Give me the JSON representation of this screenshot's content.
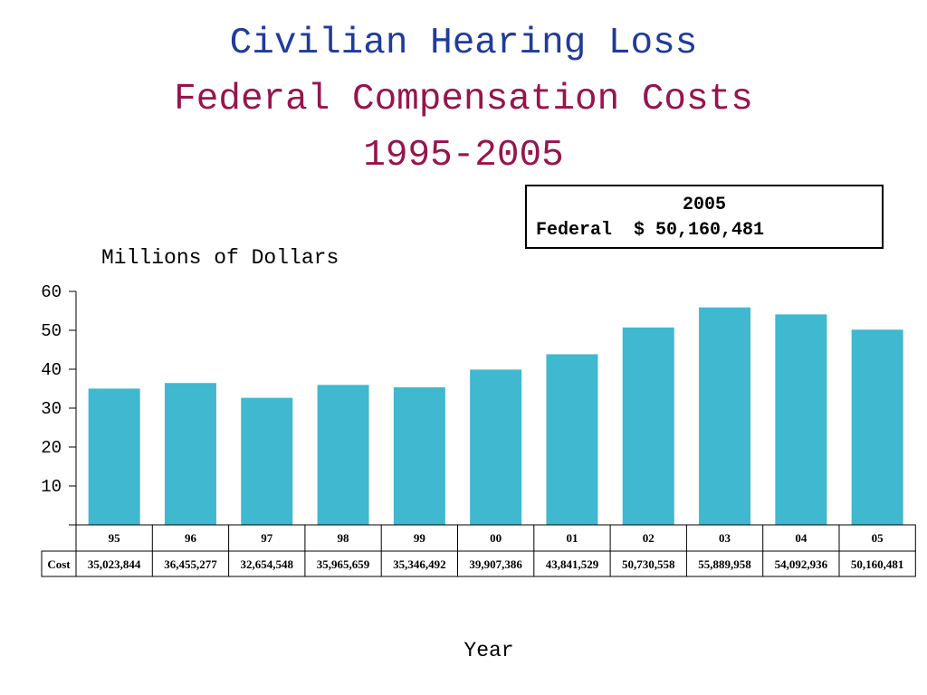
{
  "title": {
    "line1": "Civilian Hearing Loss",
    "line2": "Federal Compensation Costs",
    "line3": "1995-2005"
  },
  "colors": {
    "title_line1": "#1f3b9b",
    "title_line2": "#97144d",
    "bar": "#40b8cf",
    "axis": "#000000"
  },
  "infobox": {
    "year": "2005",
    "label": "Federal",
    "value": "$ 50,160,481"
  },
  "chart_data": {
    "type": "bar",
    "ylabel": "Millions of Dollars",
    "xlabel": "Year",
    "ylim": [
      0,
      60
    ],
    "yticks": [
      10,
      20,
      30,
      40,
      50,
      60
    ],
    "grid": false,
    "categories": [
      "95",
      "96",
      "97",
      "98",
      "99",
      "00",
      "01",
      "02",
      "03",
      "04",
      "05"
    ],
    "values": [
      35.023844,
      36.455277,
      32.654548,
      35.965659,
      35.346492,
      39.907386,
      43.841529,
      50.730558,
      55.889958,
      54.092936,
      50.160481
    ],
    "table": {
      "row_label": "Cost",
      "cells": [
        "35,023,844",
        "36,455,277",
        "32,654,548",
        "35,965,659",
        "35,346,492",
        "39,907,386",
        "43,841,529",
        "50,730,558",
        "55,889,958",
        "54,092,936",
        "50,160,481"
      ]
    }
  }
}
